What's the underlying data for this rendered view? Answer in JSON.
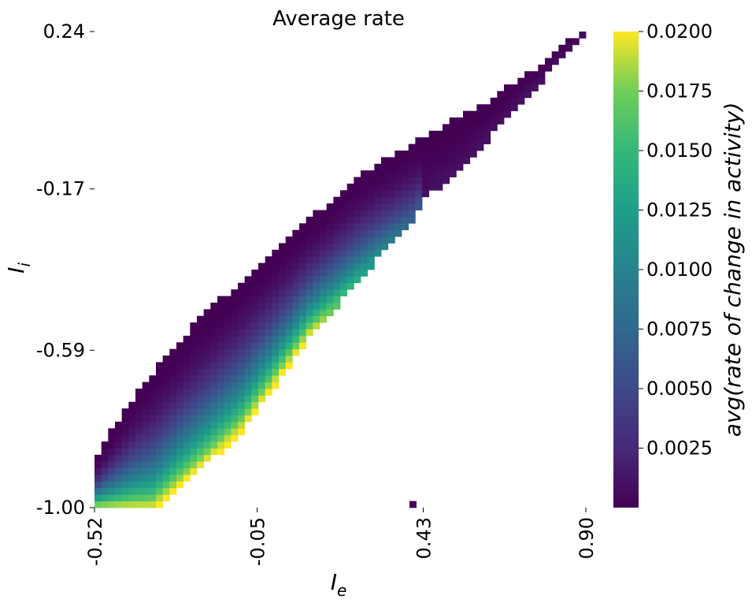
{
  "chart_data": {
    "type": "heatmap",
    "title": "Average rate",
    "xlabel": "I_e",
    "ylabel": "I_i",
    "x_ticks": [
      "-0.52",
      "-0.05",
      "0.43",
      "0.90"
    ],
    "y_ticks": [
      "0.24",
      "-0.17",
      "-0.59",
      "-1.00"
    ],
    "xlim": [
      -0.52,
      0.9
    ],
    "ylim": [
      -1.0,
      0.24
    ],
    "colorbar": {
      "label": "avg(rate of change in activity)",
      "colormap": "viridis",
      "min": 0.0,
      "max": 0.02,
      "ticks": [
        "0.0200",
        "0.0175",
        "0.0150",
        "0.0125",
        "0.0100",
        "0.0075",
        "0.0050",
        "0.0025"
      ]
    },
    "description_of_data": "Diagonal band of nonzero cells from (-0.52,-1.00) to (0.90,0.24); values near 0 along upper-left edge and top-right tail, rising to ~0.020 along the lower-right edge near I_e -0.35 to -0.05; region truncated at I_e ~0.43, with a single isolated low-value cell near (0.40,-1.00).",
    "band": {
      "lower_edge": [
        [
          -0.52,
          -1.0
        ],
        [
          -0.35,
          -1.0
        ],
        [
          -0.1,
          -0.8
        ],
        [
          0.1,
          -0.55
        ],
        [
          0.28,
          -0.36
        ],
        [
          0.4,
          -0.24
        ],
        [
          0.43,
          -0.19
        ],
        [
          0.55,
          -0.1
        ],
        [
          0.75,
          0.1
        ],
        [
          0.9,
          0.24
        ]
      ],
      "upper_edge": [
        [
          -0.52,
          -0.88
        ],
        [
          -0.4,
          -0.71
        ],
        [
          -0.25,
          -0.55
        ],
        [
          -0.1,
          -0.42
        ],
        [
          0.1,
          -0.26
        ],
        [
          0.25,
          -0.14
        ],
        [
          0.4,
          -0.06
        ],
        [
          0.6,
          0.04
        ],
        [
          0.75,
          0.13
        ],
        [
          0.9,
          0.24
        ]
      ]
    },
    "peak_value": 0.02,
    "isolated_cell": [
      0.4,
      -1.0
    ]
  }
}
